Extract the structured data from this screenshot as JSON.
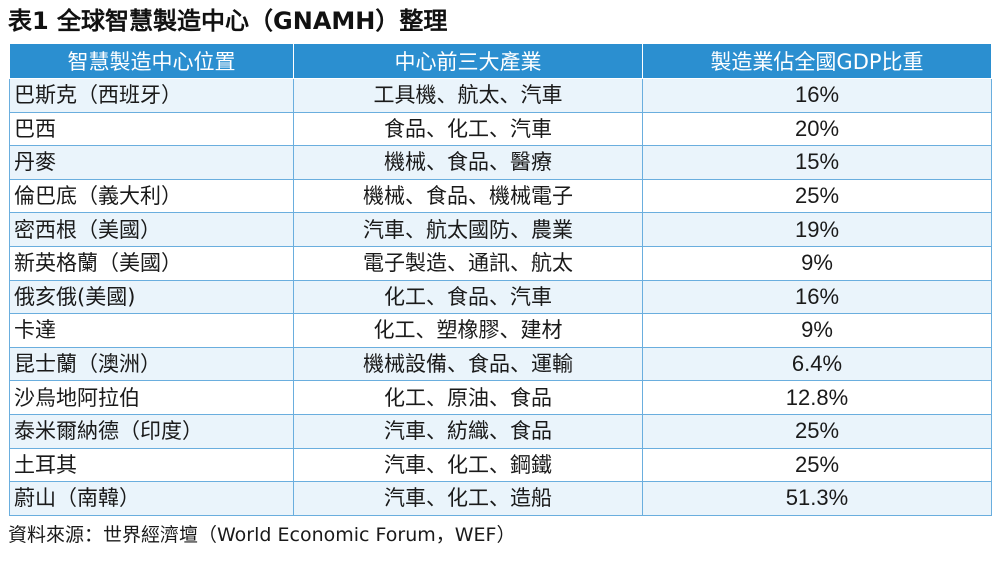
{
  "title": "表1  全球智慧製造中心（GNAMH）整理",
  "table": {
    "headers": [
      "智慧製造中心位置",
      "中心前三大產業",
      "製造業佔全國GDP比重"
    ],
    "rows": [
      {
        "location": "巴斯克（西班牙）",
        "industries": "工具機、航太、汽車",
        "gdp_share": "16%"
      },
      {
        "location": "巴西",
        "industries": "食品、化工、汽車",
        "gdp_share": "20%"
      },
      {
        "location": "丹麥",
        "industries": "機械、食品、醫療",
        "gdp_share": "15%"
      },
      {
        "location": "倫巴底（義大利）",
        "industries": "機械、食品、機械電子",
        "gdp_share": "25%"
      },
      {
        "location": "密西根（美國）",
        "industries": "汽車、航太國防、農業",
        "gdp_share": "19%"
      },
      {
        "location": "新英格蘭（美國）",
        "industries": "電子製造、通訊、航太",
        "gdp_share": "9%"
      },
      {
        "location": "俄亥俄(美國)",
        "industries": "化工、食品、汽車",
        "gdp_share": "16%"
      },
      {
        "location": "卡達",
        "industries": "化工、塑橡膠、建材",
        "gdp_share": "9%"
      },
      {
        "location": "昆士蘭（澳洲）",
        "industries": "機械設備、食品、運輸",
        "gdp_share": "6.4%"
      },
      {
        "location": "沙烏地阿拉伯",
        "industries": "化工、原油、食品",
        "gdp_share": "12.8%"
      },
      {
        "location": "泰米爾納德（印度）",
        "industries": "汽車、紡織、食品",
        "gdp_share": "25%"
      },
      {
        "location": "土耳其",
        "industries": "汽車、化工、鋼鐵",
        "gdp_share": "25%"
      },
      {
        "location": "蔚山（南韓）",
        "industries": "汽車、化工、造船",
        "gdp_share": "51.3%"
      }
    ]
  },
  "source": "資料來源：世界經濟壇（World Economic Forum，WEF）",
  "colors": {
    "header_bg": "#2b8fd0",
    "row_alt_bg": "#eaf4fb",
    "border": "#6aaede"
  }
}
